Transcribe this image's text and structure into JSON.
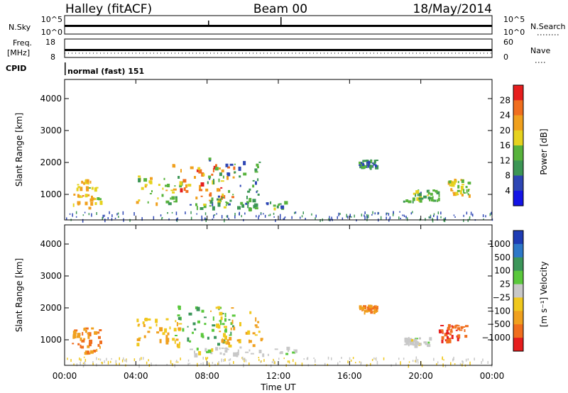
{
  "header": {
    "station": "Halley (fitACF)",
    "beam": "Beam 00",
    "date": "18/May/2014"
  },
  "top_panels": {
    "nsky": {
      "label": "N.Sky",
      "ticks": [
        "10^5",
        "10^0"
      ]
    },
    "nsearch": {
      "label": "N.Search",
      "ticks": [
        "10^5",
        "10^0"
      ]
    },
    "freq": {
      "label": "Freq.",
      "unit": "[MHz]",
      "ticks": [
        "18",
        "8"
      ]
    },
    "nave": {
      "label": "Nave",
      "ticks": [
        "60",
        "0"
      ]
    },
    "cpid": {
      "label": "CPID",
      "value": "normal (fast) 151"
    }
  },
  "chart_data": [
    {
      "type": "heatmap",
      "name": "power-panel",
      "xlabel": "",
      "ylabel": "Slant Range [km]",
      "xlim": [
        0,
        24
      ],
      "ylim": [
        200,
        4600
      ],
      "yticks": [
        "1000",
        "2000",
        "3000",
        "4000"
      ],
      "colorbar": {
        "label": "Power [dB]",
        "ticks": [
          "4",
          "8",
          "12",
          "16",
          "20",
          "24",
          "28"
        ],
        "colors": [
          "#1414e6",
          "#2d46b4",
          "#3c9655",
          "#58b33c",
          "#e6d21e",
          "#f0a01e",
          "#f06e1e",
          "#e61e1e"
        ]
      },
      "regions": [
        {
          "x": [
            0.3,
            2.0
          ],
          "y": [
            600,
            1500
          ],
          "level": 20
        },
        {
          "x": [
            4.0,
            6.5
          ],
          "y": [
            700,
            1600
          ],
          "level": 16
        },
        {
          "x": [
            6.0,
            9.5
          ],
          "y": [
            800,
            2000
          ],
          "level": 24
        },
        {
          "x": [
            8.0,
            11.0
          ],
          "y": [
            700,
            2200
          ],
          "level": 10
        },
        {
          "x": [
            7.0,
            12.5
          ],
          "y": [
            580,
            800
          ],
          "level": 12
        },
        {
          "x": [
            16.5,
            17.5
          ],
          "y": [
            1900,
            2100
          ],
          "level": 8
        },
        {
          "x": [
            19.0,
            21.0
          ],
          "y": [
            800,
            1200
          ],
          "level": 12
        },
        {
          "x": [
            21.5,
            22.7
          ],
          "y": [
            1000,
            1500
          ],
          "level": 18
        }
      ]
    },
    {
      "type": "heatmap",
      "name": "velocity-panel",
      "xlabel": "Time UT",
      "ylabel": "Slant Range [km]",
      "xlim": [
        0,
        24
      ],
      "ylim": [
        200,
        4600
      ],
      "xticks": [
        "00:00",
        "04:00",
        "08:00",
        "12:00",
        "16:00",
        "20:00",
        "00:00"
      ],
      "yticks": [
        "1000",
        "2000",
        "3000",
        "4000"
      ],
      "colorbar": {
        "label": "Velocity",
        "unit": "[m s⁻¹]",
        "ticks": [
          "1000",
          "500",
          "100",
          "25",
          "−25",
          "−100",
          "−500",
          "−1000"
        ],
        "colors": [
          "#1e3cb4",
          "#2d78c8",
          "#3c965a",
          "#5ac83c",
          "#c8c8c8",
          "#f0c81e",
          "#f0a01e",
          "#f06e1e",
          "#e61e1e"
        ]
      },
      "regions": [
        {
          "x": [
            0.3,
            2.0
          ],
          "y": [
            600,
            1400
          ],
          "level": -500
        },
        {
          "x": [
            4.0,
            6.5
          ],
          "y": [
            800,
            1700
          ],
          "level": -100
        },
        {
          "x": [
            6.0,
            9.5
          ],
          "y": [
            900,
            2100
          ],
          "level": 100
        },
        {
          "x": [
            8.0,
            11.0
          ],
          "y": [
            800,
            2100
          ],
          "level": -100
        },
        {
          "x": [
            7.0,
            13.0
          ],
          "y": [
            560,
            800
          ],
          "level": 0
        },
        {
          "x": [
            16.5,
            17.5
          ],
          "y": [
            1900,
            2100
          ],
          "level": -500
        },
        {
          "x": [
            19.0,
            20.5
          ],
          "y": [
            850,
            1100
          ],
          "level": 0
        },
        {
          "x": [
            21.0,
            22.5
          ],
          "y": [
            1000,
            1500
          ],
          "level": -1000
        }
      ]
    }
  ]
}
